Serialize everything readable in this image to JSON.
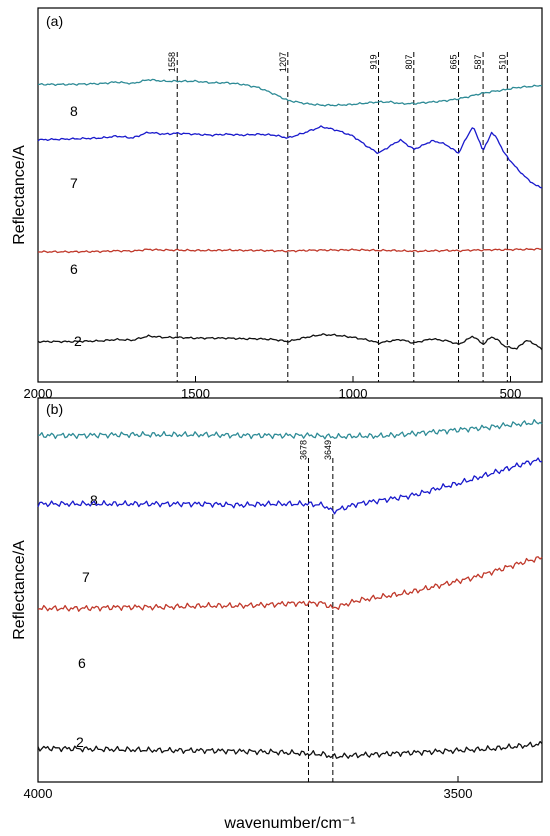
{
  "ylabel": "Reflectance/A",
  "xlabel": "wavenumber/cm⁻¹",
  "colors": {
    "8": "#2e8b96",
    "7": "#1a1acc",
    "6": "#c0392b",
    "2": "#111111"
  },
  "chart_data": [
    {
      "type": "line",
      "panel_label": "(a)",
      "xlim": [
        2000,
        400
      ],
      "xticks": [
        "2000",
        "1500",
        "1000",
        "500"
      ],
      "xtick_values": [
        2000,
        1500,
        1000,
        500
      ],
      "reference_lines": [
        1558,
        1207,
        919,
        807,
        665,
        587,
        510
      ],
      "reference_labels": [
        "1558",
        "1207",
        "919",
        "807",
        "665",
        "587",
        "510"
      ],
      "series": [
        {
          "name": "8",
          "x": [
            2000,
            1900,
            1800,
            1750,
            1700,
            1650,
            1600,
            1558,
            1500,
            1450,
            1400,
            1350,
            1300,
            1250,
            1207,
            1150,
            1100,
            1050,
            1000,
            950,
            919,
            880,
            850,
            807,
            780,
            750,
            720,
            700,
            665,
            640,
            620,
            600,
            587,
            560,
            540,
            520,
            510,
            480,
            450,
            420,
            400
          ],
          "y": [
            0.82,
            0.82,
            0.83,
            0.85,
            0.83,
            0.88,
            0.86,
            0.86,
            0.86,
            0.84,
            0.84,
            0.82,
            0.78,
            0.7,
            0.62,
            0.58,
            0.56,
            0.56,
            0.57,
            0.59,
            0.6,
            0.6,
            0.58,
            0.58,
            0.59,
            0.6,
            0.61,
            0.62,
            0.64,
            0.66,
            0.68,
            0.7,
            0.71,
            0.73,
            0.74,
            0.75,
            0.76,
            0.78,
            0.79,
            0.8,
            0.81
          ]
        },
        {
          "name": "7",
          "x": [
            2000,
            1900,
            1800,
            1750,
            1700,
            1650,
            1600,
            1558,
            1500,
            1450,
            1400,
            1350,
            1300,
            1250,
            1207,
            1150,
            1100,
            1050,
            1000,
            950,
            919,
            880,
            850,
            807,
            780,
            750,
            720,
            700,
            665,
            640,
            620,
            600,
            587,
            560,
            540,
            520,
            510,
            480,
            450,
            420,
            400
          ],
          "y": [
            0.58,
            0.59,
            0.6,
            0.62,
            0.6,
            0.66,
            0.64,
            0.65,
            0.64,
            0.63,
            0.64,
            0.63,
            0.64,
            0.63,
            0.6,
            0.66,
            0.72,
            0.68,
            0.62,
            0.5,
            0.44,
            0.52,
            0.58,
            0.48,
            0.52,
            0.57,
            0.55,
            0.52,
            0.44,
            0.6,
            0.72,
            0.58,
            0.46,
            0.66,
            0.58,
            0.44,
            0.4,
            0.28,
            0.18,
            0.1,
            0.08
          ]
        },
        {
          "name": "6",
          "x": [
            2000,
            1900,
            1800,
            1750,
            1700,
            1650,
            1600,
            1558,
            1500,
            1450,
            1400,
            1350,
            1300,
            1250,
            1207,
            1150,
            1100,
            1050,
            1000,
            950,
            919,
            880,
            850,
            807,
            780,
            750,
            720,
            700,
            665,
            640,
            620,
            600,
            587,
            560,
            540,
            520,
            510,
            480,
            450,
            420,
            400
          ],
          "y": [
            0.3,
            0.3,
            0.31,
            0.33,
            0.32,
            0.37,
            0.35,
            0.35,
            0.34,
            0.34,
            0.35,
            0.34,
            0.34,
            0.33,
            0.32,
            0.34,
            0.35,
            0.35,
            0.36,
            0.35,
            0.34,
            0.34,
            0.33,
            0.32,
            0.32,
            0.33,
            0.33,
            0.34,
            0.33,
            0.34,
            0.35,
            0.35,
            0.35,
            0.36,
            0.36,
            0.36,
            0.36,
            0.37,
            0.37,
            0.38,
            0.38
          ]
        },
        {
          "name": "2",
          "x": [
            2000,
            1900,
            1800,
            1750,
            1700,
            1650,
            1600,
            1558,
            1500,
            1450,
            1400,
            1350,
            1300,
            1250,
            1207,
            1150,
            1100,
            1050,
            1000,
            950,
            919,
            880,
            850,
            807,
            780,
            750,
            720,
            700,
            665,
            640,
            620,
            600,
            587,
            560,
            540,
            520,
            510,
            480,
            450,
            420,
            400
          ],
          "y": [
            0.12,
            0.12,
            0.13,
            0.15,
            0.14,
            0.2,
            0.18,
            0.18,
            0.17,
            0.17,
            0.17,
            0.16,
            0.16,
            0.15,
            0.12,
            0.18,
            0.22,
            0.21,
            0.18,
            0.14,
            0.1,
            0.13,
            0.15,
            0.1,
            0.13,
            0.16,
            0.14,
            0.13,
            0.08,
            0.14,
            0.2,
            0.13,
            0.08,
            0.19,
            0.14,
            0.06,
            0.04,
            0.02,
            0.14,
            0.08,
            0.0
          ]
        }
      ]
    },
    {
      "type": "line",
      "panel_label": "(b)",
      "xlim": [
        4000,
        3400
      ],
      "xticks": [
        "4000",
        "3500"
      ],
      "xtick_values": [
        4000,
        3500
      ],
      "reference_lines": [
        3678,
        3649
      ],
      "reference_labels": [
        "3678",
        "3649"
      ],
      "series": [
        {
          "name": "8",
          "x": [
            4000,
            3950,
            3900,
            3850,
            3800,
            3760,
            3720,
            3700,
            3678,
            3660,
            3649,
            3620,
            3600,
            3580,
            3560,
            3540,
            3520,
            3500,
            3480,
            3460,
            3440,
            3420,
            3400
          ],
          "y": [
            0.78,
            0.78,
            0.79,
            0.79,
            0.79,
            0.78,
            0.78,
            0.78,
            0.78,
            0.77,
            0.76,
            0.77,
            0.77,
            0.78,
            0.8,
            0.82,
            0.84,
            0.86,
            0.88,
            0.9,
            0.93,
            0.95,
            0.97
          ]
        },
        {
          "name": "7",
          "x": [
            4000,
            3950,
            3900,
            3850,
            3800,
            3760,
            3720,
            3700,
            3678,
            3660,
            3649,
            3620,
            3600,
            3580,
            3560,
            3540,
            3520,
            3500,
            3480,
            3460,
            3440,
            3420,
            3400
          ],
          "y": [
            0.56,
            0.56,
            0.56,
            0.56,
            0.56,
            0.55,
            0.56,
            0.56,
            0.56,
            0.55,
            0.5,
            0.56,
            0.58,
            0.6,
            0.62,
            0.65,
            0.69,
            0.72,
            0.76,
            0.8,
            0.84,
            0.88,
            0.91
          ]
        },
        {
          "name": "6",
          "x": [
            4000,
            3950,
            3900,
            3850,
            3800,
            3760,
            3720,
            3700,
            3678,
            3660,
            3649,
            3620,
            3600,
            3580,
            3560,
            3540,
            3520,
            3500,
            3480,
            3460,
            3440,
            3420,
            3400
          ],
          "y": [
            0.32,
            0.32,
            0.33,
            0.33,
            0.34,
            0.34,
            0.35,
            0.36,
            0.36,
            0.36,
            0.32,
            0.38,
            0.4,
            0.42,
            0.44,
            0.47,
            0.5,
            0.53,
            0.56,
            0.6,
            0.64,
            0.68,
            0.71
          ]
        },
        {
          "name": "2",
          "x": [
            4000,
            3950,
            3900,
            3850,
            3800,
            3760,
            3720,
            3700,
            3678,
            3660,
            3649,
            3620,
            3600,
            3580,
            3560,
            3540,
            3520,
            3500,
            3480,
            3460,
            3440,
            3420,
            3400
          ],
          "y": [
            0.15,
            0.14,
            0.13,
            0.12,
            0.12,
            0.11,
            0.1,
            0.09,
            0.08,
            0.07,
            0.04,
            0.06,
            0.07,
            0.08,
            0.09,
            0.1,
            0.11,
            0.12,
            0.13,
            0.14,
            0.16,
            0.18,
            0.2
          ]
        }
      ]
    }
  ]
}
